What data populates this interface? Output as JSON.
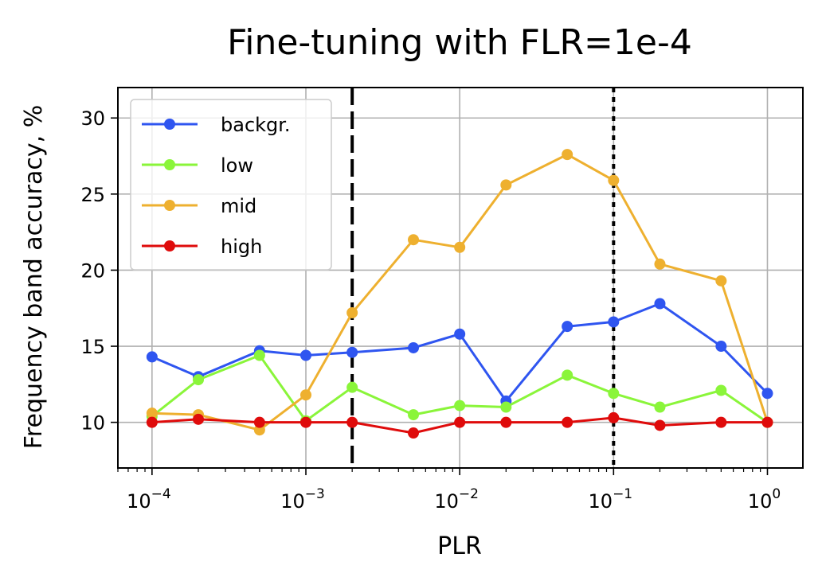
{
  "chart_data": {
    "type": "line",
    "title": "Fine-tuning with FLR=1e-4",
    "xlabel": "PLR",
    "ylabel": "Frequency band accuracy, %",
    "xscale": "log",
    "xlim": [
      6e-05,
      1.7
    ],
    "ylim": [
      7,
      32
    ],
    "x_ticks": [
      {
        "value": 0.0001,
        "base": "10",
        "exp": "−4"
      },
      {
        "value": 0.001,
        "base": "10",
        "exp": "−3"
      },
      {
        "value": 0.01,
        "base": "10",
        "exp": "−2"
      },
      {
        "value": 0.1,
        "base": "10",
        "exp": "−1"
      },
      {
        "value": 1,
        "base": "10",
        "exp": "0"
      }
    ],
    "y_ticks": [
      10,
      15,
      20,
      25,
      30
    ],
    "grid": true,
    "legend_position": "top-left",
    "x": [
      0.0001,
      0.0002,
      0.0005,
      0.001,
      0.002,
      0.005,
      0.01,
      0.02,
      0.05,
      0.1,
      0.2,
      0.5,
      1
    ],
    "series": [
      {
        "name": "backgr.",
        "color": "#2f55f0",
        "values": [
          14.3,
          13.0,
          14.7,
          14.4,
          14.6,
          14.9,
          15.8,
          11.4,
          16.3,
          16.6,
          17.8,
          15.0,
          11.9
        ]
      },
      {
        "name": "low",
        "color": "#8af53a",
        "values": [
          10.4,
          12.8,
          14.4,
          10.1,
          12.3,
          10.5,
          11.1,
          11.0,
          13.1,
          11.9,
          11.0,
          12.1,
          10.0
        ]
      },
      {
        "name": "mid",
        "color": "#eeb02f",
        "values": [
          10.6,
          10.5,
          9.5,
          11.8,
          17.2,
          22.0,
          21.5,
          25.6,
          27.6,
          25.9,
          20.4,
          19.3,
          10.0
        ]
      },
      {
        "name": "high",
        "color": "#df0b0b",
        "values": [
          10.0,
          10.2,
          10.0,
          10.0,
          10.0,
          9.3,
          10.0,
          10.0,
          10.0,
          10.3,
          9.8,
          10.0,
          10.0
        ]
      }
    ],
    "vlines": [
      {
        "x": 0.002,
        "style": "dashed",
        "color": "#000000"
      },
      {
        "x": 0.1,
        "style": "dotted",
        "color": "#000000"
      }
    ]
  }
}
